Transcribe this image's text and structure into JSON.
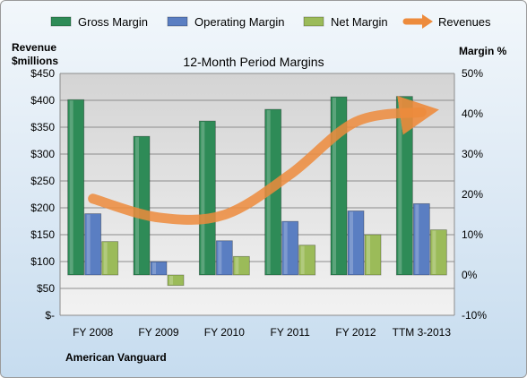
{
  "chart_data": {
    "type": "bar",
    "title": "12-Month Period Margins",
    "company_label": "American Vanguard",
    "left_axis_title": [
      "Revenue",
      "$millions"
    ],
    "right_axis_title": "Margin %",
    "categories": [
      "FY 2008",
      "FY 2009",
      "FY 2010",
      "FY 2011",
      "FY 2012",
      "TTM 3-2013"
    ],
    "left_axis": {
      "ylim": [
        0,
        450
      ],
      "ticks": [
        0,
        50,
        100,
        150,
        200,
        250,
        300,
        350,
        400,
        450
      ],
      "tick_labels": [
        "$-",
        "$50",
        "$100",
        "$150",
        "$200",
        "$250",
        "$300",
        "$350",
        "$400",
        "$450"
      ]
    },
    "right_axis": {
      "ylim": [
        -10,
        50
      ],
      "ticks": [
        -10,
        0,
        10,
        20,
        30,
        40,
        50
      ],
      "tick_labels": [
        "-10%",
        "0%",
        "10%",
        "20%",
        "30%",
        "40%",
        "50%"
      ]
    },
    "series": [
      {
        "name": "Gross Margin",
        "kind": "bar",
        "axis": "right",
        "color": "#2e8b57",
        "values": [
          43.5,
          34.4,
          38.2,
          41.1,
          44.2,
          44.3
        ]
      },
      {
        "name": "Operating Margin",
        "kind": "bar",
        "axis": "right",
        "color": "#5a7ec2",
        "values": [
          15.2,
          3.3,
          8.5,
          13.3,
          15.9,
          17.7
        ]
      },
      {
        "name": "Net Margin",
        "kind": "bar",
        "axis": "right",
        "color": "#9bbb59",
        "values": [
          8.3,
          -2.6,
          4.6,
          7.4,
          10.0,
          11.2
        ]
      },
      {
        "name": "Revenues",
        "kind": "line",
        "axis": "left",
        "color": "#ed8b3c",
        "values": [
          217,
          182,
          187,
          262,
          360,
          378
        ]
      }
    ],
    "grid": true,
    "legend_position": "top"
  }
}
